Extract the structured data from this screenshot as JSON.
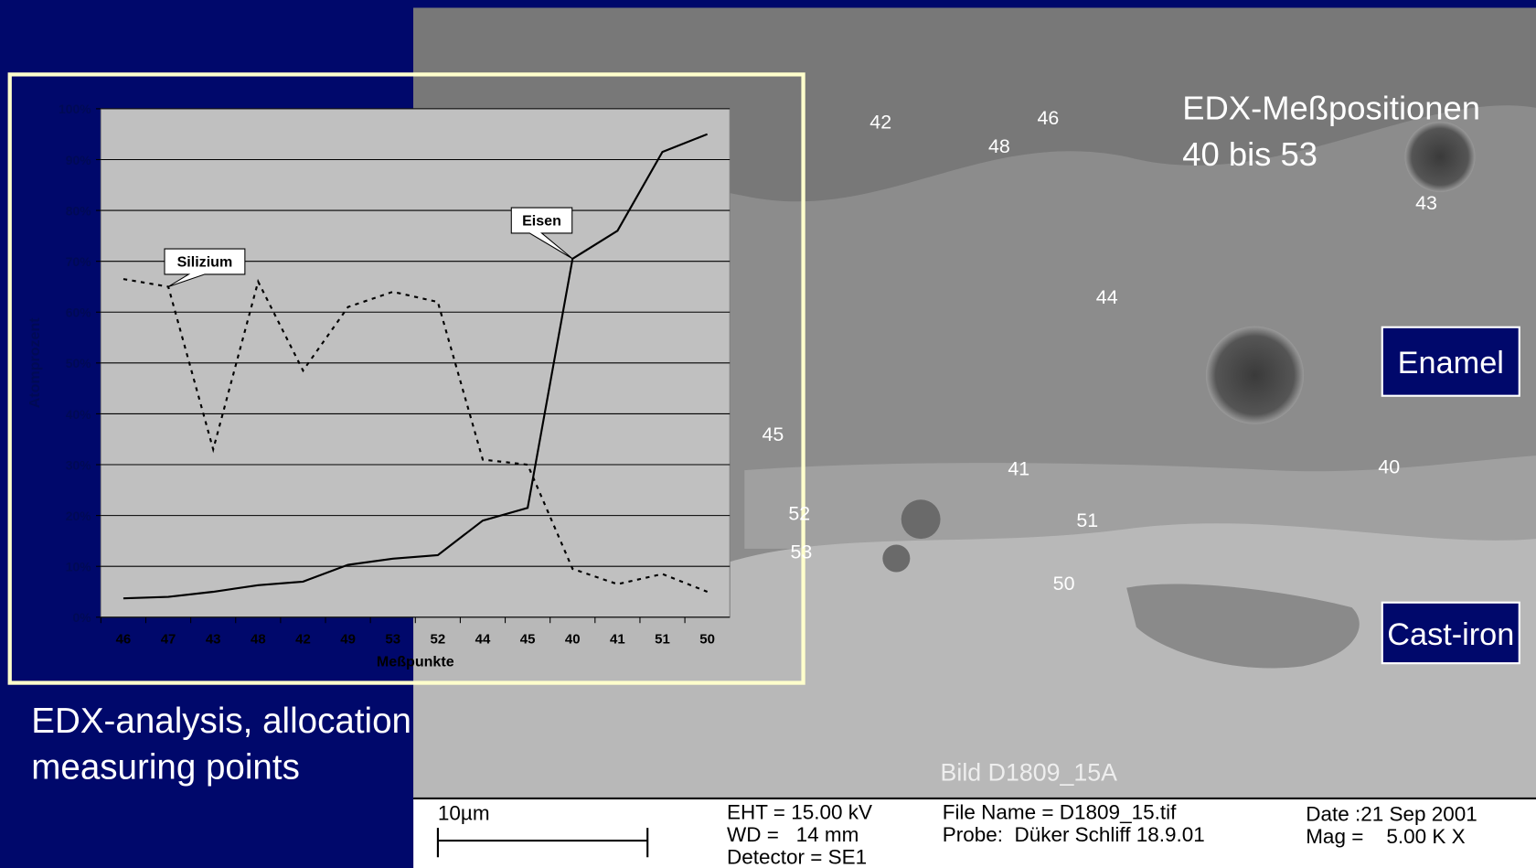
{
  "chart_data": {
    "type": "line",
    "y_label": "Atomprozent",
    "x_label": "Meßpunkte",
    "categories": [
      "46",
      "47",
      "43",
      "48",
      "42",
      "49",
      "53",
      "52",
      "44",
      "45",
      "40",
      "41",
      "51",
      "50"
    ],
    "series": [
      {
        "name": "Silizium",
        "color": "#000000",
        "style": "dashed",
        "values": [
          66.5,
          65,
          33,
          66,
          48.5,
          61,
          64,
          62,
          31,
          30,
          9.5,
          6.5,
          8.5,
          5
        ]
      },
      {
        "name": "Eisen",
        "color": "#000000",
        "style": "solid",
        "values": [
          3.7,
          4,
          5,
          6.3,
          7,
          10.3,
          11.5,
          12.2,
          19,
          21.5,
          70.5,
          76,
          91.5,
          95
        ]
      }
    ],
    "ylim": [
      0,
      100
    ],
    "yticks": [
      {
        "value": 0,
        "label": "0%"
      },
      {
        "value": 10,
        "label": "10%"
      },
      {
        "value": 20,
        "label": "20%"
      },
      {
        "value": 30,
        "label": "30%"
      },
      {
        "value": 40,
        "label": "40%"
      },
      {
        "value": 50,
        "label": "50%"
      },
      {
        "value": 60,
        "label": "60%"
      },
      {
        "value": 70,
        "label": "70%"
      },
      {
        "value": 80,
        "label": "80%"
      },
      {
        "value": 90,
        "label": "90%"
      },
      {
        "value": 100,
        "label": "100%"
      }
    ],
    "grid": true
  },
  "image": {
    "title": [
      "EDX-Meßpositionen",
      "40 bis 53"
    ],
    "points": [
      "42",
      "46",
      "48",
      "43",
      "44",
      "45",
      "41",
      "40",
      "52",
      "51",
      "53",
      "50"
    ],
    "regions": [
      "Enamel",
      "Cast-iron"
    ],
    "image_name": "Bild D1809_15A"
  },
  "caption": [
    "EDX-analysis, allocation",
    "measuring points"
  ],
  "info_bar": {
    "scale": "10µm",
    "eht": "EHT = 15.00 kV",
    "wd": "WD =   14 mm",
    "detector": "Detector = SE1",
    "file_name": "File Name = D1809_15.tif",
    "probe": "Probe:  Düker Schliff 18.9.01",
    "date": "Date :21 Sep 2001",
    "mag": "Mag =    5.00 K X"
  }
}
